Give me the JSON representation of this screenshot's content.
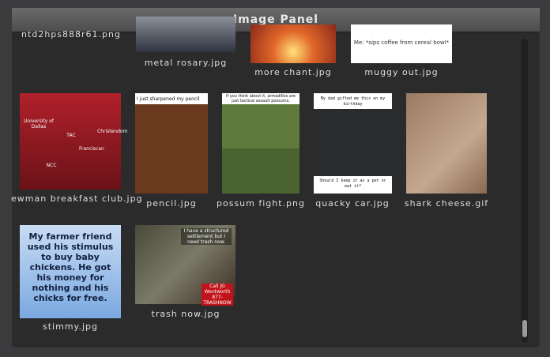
{
  "panel": {
    "title": "Image Panel"
  },
  "items": [
    {
      "filename": "ntd2hps888r61.png"
    },
    {
      "filename": "metal rosary.jpg"
    },
    {
      "filename": "more chant.jpg"
    },
    {
      "filename": "muggy out.jpg",
      "caption": [
        "Me: *sips coffee from cereal bowl*"
      ]
    },
    {
      "filename": "ewman breakfast club.jpg",
      "caption": [
        "University of Dallas",
        "TAC",
        "Franciscan",
        "Christendom",
        "NCC"
      ]
    },
    {
      "filename": "pencil.jpg",
      "caption": [
        "I just sharpened my pencil"
      ]
    },
    {
      "filename": "possum fight.png",
      "caption": [
        "If you think about it, armadillos are just tactical assault possums."
      ]
    },
    {
      "filename": "quacky car.jpg",
      "caption": [
        "My dad gifted me this on my birthday",
        "Should I keep it as a pet or eat it?"
      ]
    },
    {
      "filename": "shark cheese.gif"
    },
    {
      "filename": "stimmy.jpg",
      "caption": [
        "My farmer friend used his stimulus to buy baby chickens. He got his money for nothing and his chicks for free."
      ]
    },
    {
      "filename": "trash now.jpg",
      "caption": [
        "I have a structured settlement but I need trash now.",
        "Call JG Wentworth 877-TRASHNOW"
      ]
    }
  ]
}
